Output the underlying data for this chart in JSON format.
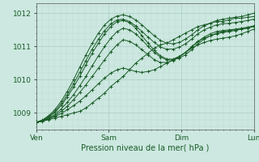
{
  "xlabel": "Pression niveau de la mer( hPa )",
  "bg_color": "#cce8e0",
  "grid_color_major": "#aaccC4",
  "grid_color_minor": "#bbd8d0",
  "line_color": "#1a5c28",
  "marker_color": "#1a5c28",
  "tick_label_color": "#1a5c28",
  "axis_color": "#555555",
  "xlim": [
    0,
    72
  ],
  "ylim": [
    1008.5,
    1012.3
  ],
  "yticks": [
    1009,
    1010,
    1011,
    1012
  ],
  "xtick_positions": [
    0,
    24,
    48,
    72
  ],
  "xtick_labels": [
    "Ven",
    "Sam",
    "Dim",
    "Lun"
  ],
  "series": [
    [
      1008.72,
      1008.75,
      1008.8,
      1008.85,
      1008.9,
      1008.95,
      1009.0,
      1009.05,
      1009.15,
      1009.3,
      1009.45,
      1009.6,
      1009.8,
      1009.95,
      1010.1,
      1010.3,
      1010.5,
      1010.65,
      1010.8,
      1010.95,
      1011.05,
      1011.1,
      1011.2,
      1011.3,
      1011.4,
      1011.5,
      1011.6,
      1011.65,
      1011.7,
      1011.75,
      1011.75,
      1011.8,
      1011.85,
      1011.85,
      1011.88,
      1011.9
    ],
    [
      1008.72,
      1008.76,
      1008.82,
      1008.9,
      1008.98,
      1009.1,
      1009.22,
      1009.36,
      1009.52,
      1009.7,
      1009.88,
      1010.05,
      1010.2,
      1010.3,
      1010.35,
      1010.3,
      1010.25,
      1010.22,
      1010.25,
      1010.3,
      1010.4,
      1010.5,
      1010.6,
      1010.7,
      1010.82,
      1010.95,
      1011.05,
      1011.12,
      1011.18,
      1011.22,
      1011.25,
      1011.28,
      1011.32,
      1011.38,
      1011.45,
      1011.52
    ],
    [
      1008.72,
      1008.76,
      1008.83,
      1008.92,
      1009.05,
      1009.2,
      1009.4,
      1009.62,
      1009.85,
      1010.1,
      1010.35,
      1010.6,
      1010.85,
      1011.05,
      1011.2,
      1011.15,
      1011.05,
      1010.9,
      1010.75,
      1010.6,
      1010.52,
      1010.52,
      1010.58,
      1010.68,
      1010.82,
      1011.0,
      1011.15,
      1011.25,
      1011.32,
      1011.38,
      1011.42,
      1011.45,
      1011.48,
      1011.52,
      1011.56,
      1011.62
    ],
    [
      1008.72,
      1008.77,
      1008.85,
      1008.96,
      1009.12,
      1009.32,
      1009.55,
      1009.82,
      1010.1,
      1010.42,
      1010.72,
      1011.0,
      1011.25,
      1011.45,
      1011.55,
      1011.5,
      1011.38,
      1011.2,
      1011.0,
      1010.82,
      1010.68,
      1010.6,
      1010.6,
      1010.65,
      1010.75,
      1010.9,
      1011.08,
      1011.22,
      1011.32,
      1011.4,
      1011.45,
      1011.48,
      1011.5,
      1011.52,
      1011.55,
      1011.6
    ],
    [
      1008.72,
      1008.78,
      1008.88,
      1009.02,
      1009.22,
      1009.48,
      1009.78,
      1010.1,
      1010.45,
      1010.8,
      1011.1,
      1011.38,
      1011.6,
      1011.75,
      1011.78,
      1011.72,
      1011.55,
      1011.32,
      1011.1,
      1010.88,
      1010.72,
      1010.62,
      1010.62,
      1010.7,
      1010.82,
      1010.98,
      1011.15,
      1011.28,
      1011.38,
      1011.45,
      1011.48,
      1011.5,
      1011.52,
      1011.55,
      1011.58,
      1011.62
    ],
    [
      1008.72,
      1008.78,
      1008.9,
      1009.05,
      1009.28,
      1009.55,
      1009.88,
      1010.22,
      1010.58,
      1010.92,
      1011.22,
      1011.48,
      1011.68,
      1011.8,
      1011.82,
      1011.75,
      1011.62,
      1011.45,
      1011.28,
      1011.12,
      1010.98,
      1010.92,
      1010.92,
      1010.98,
      1011.08,
      1011.22,
      1011.38,
      1011.5,
      1011.58,
      1011.65,
      1011.68,
      1011.7,
      1011.72,
      1011.75,
      1011.78,
      1011.82
    ],
    [
      1008.72,
      1008.79,
      1008.92,
      1009.1,
      1009.35,
      1009.65,
      1010.0,
      1010.38,
      1010.75,
      1011.1,
      1011.4,
      1011.65,
      1011.82,
      1011.92,
      1011.95,
      1011.9,
      1011.8,
      1011.65,
      1011.48,
      1011.32,
      1011.18,
      1011.1,
      1011.08,
      1011.12,
      1011.22,
      1011.35,
      1011.5,
      1011.62,
      1011.7,
      1011.78,
      1011.82,
      1011.85,
      1011.88,
      1011.9,
      1011.95,
      1012.0
    ]
  ],
  "num_points": 36
}
